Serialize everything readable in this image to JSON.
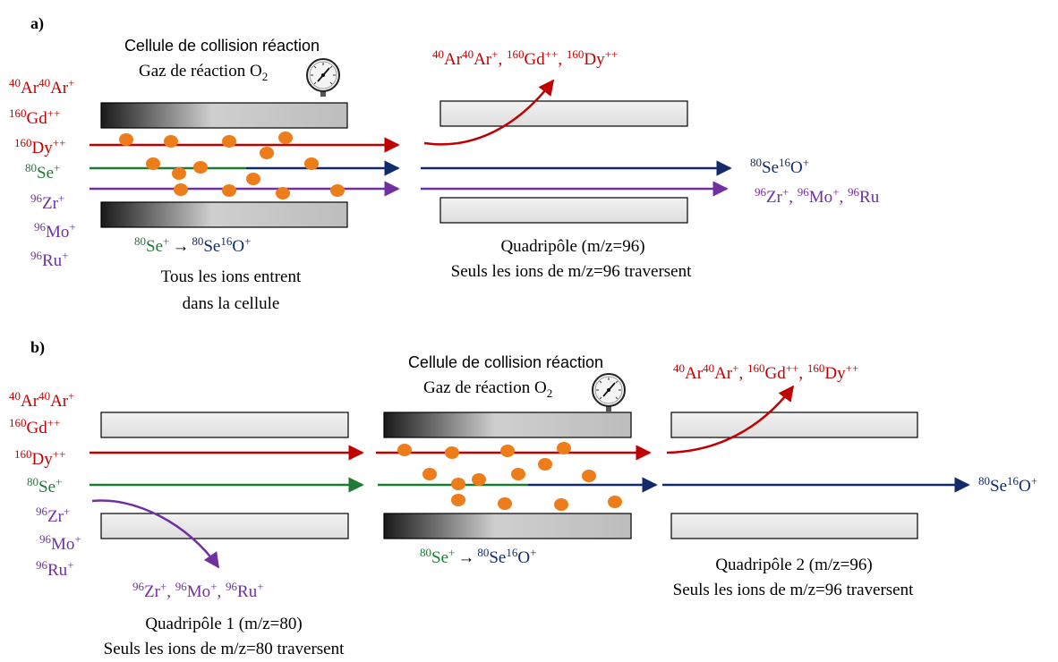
{
  "colors": {
    "red": "#c00000",
    "green": "#1e7b33",
    "navy": "#132a6b",
    "purple": "#7030a0",
    "orange": "#ed7d1a",
    "black": "#000000"
  },
  "panel_a": {
    "label": "a)",
    "cell_title": "Cellule de collision réaction",
    "gas_label": "Gaz de réaction O",
    "gas_sub": "2",
    "ions": [
      {
        "iso1": "40",
        "el1": "Ar",
        "iso2": "40",
        "el2": "Ar",
        "charge": "+"
      },
      {
        "iso1": "160",
        "el1": "Gd",
        "charge": "++"
      },
      {
        "iso1": "160",
        "el1": "Dy",
        "charge": "++"
      },
      {
        "iso1": "80",
        "el1": "Se",
        "charge": "+"
      },
      {
        "iso1": "96",
        "el1": "Zr",
        "charge": "+"
      },
      {
        "iso1": "96",
        "el1": "Mo",
        "charge": "+"
      },
      {
        "iso1": "96",
        "el1": "Ru",
        "charge": "+"
      }
    ],
    "reaction": {
      "reactant_iso": "80",
      "reactant_el": "Se",
      "charge": "+",
      "arrow": "→",
      "prod_iso1": "80",
      "prod_el1": "Se",
      "prod_iso2": "16",
      "prod_el2": "O",
      "prod_charge": "+"
    },
    "cell_caption_1": "Tous les ions entrent",
    "cell_caption_2": "dans la cellule",
    "quad_caption_1": "Quadripôle (m/z=96)",
    "quad_caption_2": "Seuls les ions de m/z=96 traversent",
    "out_red": {
      "iso1": "40",
      "el1": "Ar",
      "iso2": "40",
      "el2": "Ar",
      "c1": "+",
      "sep": ", ",
      "iso3": "160",
      "el3": "Gd",
      "c2": "++",
      "iso4": "160",
      "el4": "Dy",
      "c3": "++"
    },
    "out_navy": {
      "iso1": "80",
      "el1": "Se",
      "iso2": "16",
      "el2": "O",
      "charge": "+"
    },
    "out_purple": {
      "iso1": "96",
      "el1": "Zr",
      "c1": "+",
      "sep": ", ",
      "iso2": "96",
      "el2": "Mo",
      "iso3": "96",
      "el3": "Ru"
    }
  },
  "panel_b": {
    "label": "b)",
    "cell_title": "Cellule de collision réaction",
    "gas_label": "Gaz de réaction O",
    "gas_sub": "2",
    "ions": [
      {
        "iso1": "40",
        "el1": "Ar",
        "iso2": "40",
        "el2": "Ar",
        "charge": "+"
      },
      {
        "iso1": "160",
        "el1": "Gd",
        "charge": "++"
      },
      {
        "iso1": "160",
        "el1": "Dy",
        "charge": "++"
      },
      {
        "iso1": "80",
        "el1": "Se",
        "charge": "+"
      },
      {
        "iso1": "96",
        "el1": "Zr",
        "charge": "+"
      },
      {
        "iso1": "96",
        "el1": "Mo",
        "charge": "+"
      },
      {
        "iso1": "96",
        "el1": "Ru",
        "charge": "+"
      }
    ],
    "reaction": {
      "reactant_iso": "80",
      "reactant_el": "Se",
      "charge": "+",
      "arrow": "→",
      "prod_iso1": "80",
      "prod_el1": "Se",
      "prod_iso2": "16",
      "prod_el2": "O",
      "prod_charge": "+"
    },
    "quad1_caption_1": "Quadripôle 1 (m/z=80)",
    "quad1_caption_2": "Seuls les ions de m/z=80 traversent",
    "quad2_caption_1": "Quadripôle 2 (m/z=96)",
    "quad2_caption_2": "Seuls les ions de m/z=96 traversent",
    "out_purple": {
      "iso1": "96",
      "el1": "Zr",
      "c1": "+",
      "sep": ", ",
      "iso2": "96",
      "el2": "Mo",
      "c2": "+",
      "iso3": "96",
      "el3": "Ru",
      "c3": "+"
    },
    "out_red": {
      "iso1": "40",
      "el1": "Ar",
      "iso2": "40",
      "el2": "Ar",
      "c1": "+",
      "sep": ", ",
      "iso3": "160",
      "el3": "Gd",
      "c2": "++",
      "iso4": "160",
      "el4": "Dy",
      "c3": "++"
    },
    "out_navy": {
      "iso1": "80",
      "el1": "Se",
      "iso2": "16",
      "el2": "O",
      "charge": "+"
    }
  }
}
